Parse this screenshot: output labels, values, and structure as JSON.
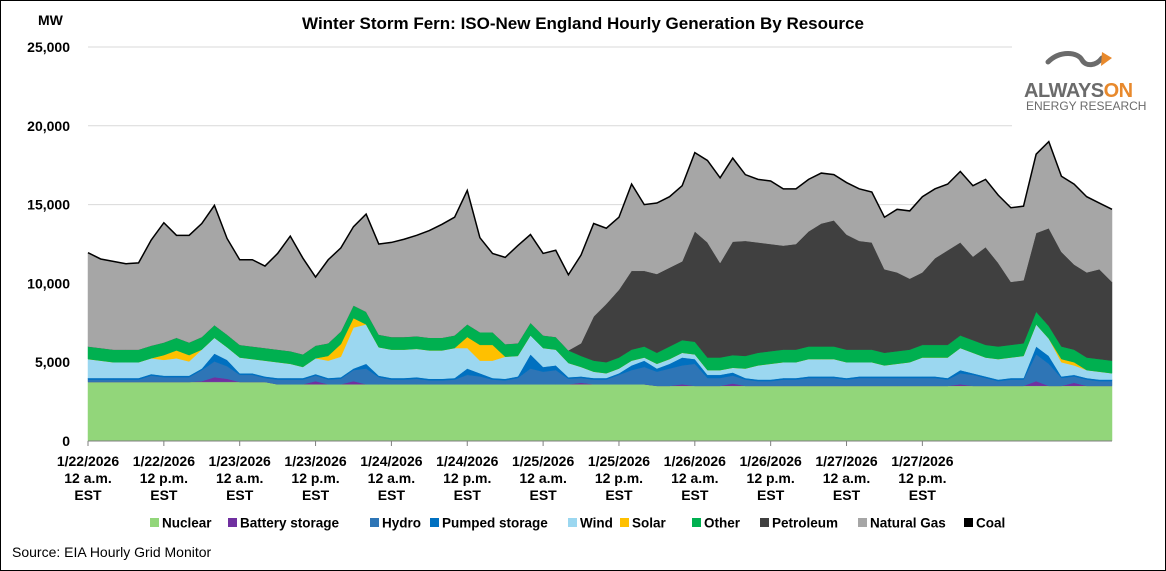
{
  "chart_data": {
    "type": "area",
    "stacked": true,
    "title": "Winter Storm Fern: ISO-New England Hourly Generation By Resource",
    "y_unit_label": "MW",
    "source": "Source: EIA Hourly Grid Monitor",
    "ylim": [
      0,
      25000
    ],
    "y_ticks": [
      "0",
      "5,000",
      "10,000",
      "15,000",
      "20,000",
      "25,000"
    ],
    "y_tick_values": [
      0,
      5000,
      10000,
      15000,
      20000,
      25000
    ],
    "grid": true,
    "legend_position": "bottom",
    "x_tick_labels": [
      [
        "1/22/2026",
        "12 a.m.",
        "EST"
      ],
      [
        "1/22/2026",
        "12 p.m.",
        "EST"
      ],
      [
        "1/23/2026",
        "12 a.m.",
        "EST"
      ],
      [
        "1/23/2026",
        "12 p.m.",
        "EST"
      ],
      [
        "1/24/2026",
        "12 a.m.",
        "EST"
      ],
      [
        "1/24/2026",
        "12 p.m.",
        "EST"
      ],
      [
        "1/25/2026",
        "12 a.m.",
        "EST"
      ],
      [
        "1/25/2026",
        "12 p.m.",
        "EST"
      ],
      [
        "1/26/2026",
        "12 a.m.",
        "EST"
      ],
      [
        "1/26/2026",
        "12 p.m.",
        "EST"
      ],
      [
        "1/27/2026",
        "12 a.m.",
        "EST"
      ],
      [
        "1/27/2026",
        "12 p.m.",
        "EST"
      ]
    ],
    "x_hours_per_step": 2,
    "series": [
      {
        "name": "Nuclear",
        "color": "#92d67a",
        "values": [
          3750,
          3750,
          3750,
          3750,
          3750,
          3750,
          3750,
          3750,
          3750,
          3750,
          3750,
          3750,
          3750,
          3750,
          3750,
          3600,
          3600,
          3600,
          3600,
          3600,
          3600,
          3600,
          3600,
          3600,
          3600,
          3600,
          3600,
          3600,
          3600,
          3600,
          3600,
          3600,
          3600,
          3600,
          3600,
          3600,
          3600,
          3600,
          3600,
          3600,
          3600,
          3600,
          3600,
          3600,
          3600,
          3500,
          3500,
          3500,
          3500,
          3500,
          3500,
          3500,
          3500,
          3500,
          3500,
          3500,
          3500,
          3500,
          3500,
          3500,
          3500,
          3500,
          3500,
          3500,
          3500,
          3500,
          3500,
          3500,
          3500,
          3500,
          3500,
          3500,
          3500,
          3500,
          3500,
          3500,
          3500,
          3500,
          3500,
          3500,
          3500,
          3500
        ]
      },
      {
        "name": "Battery storage",
        "color": "#7030a0",
        "values": [
          0,
          0,
          0,
          0,
          0,
          0,
          0,
          0,
          0,
          50,
          300,
          200,
          0,
          0,
          0,
          0,
          0,
          0,
          200,
          0,
          0,
          200,
          0,
          0,
          0,
          0,
          0,
          0,
          0,
          0,
          0,
          0,
          0,
          0,
          0,
          0,
          0,
          0,
          0,
          100,
          0,
          0,
          0,
          0,
          0,
          0,
          0,
          100,
          0,
          0,
          0,
          150,
          0,
          0,
          0,
          0,
          0,
          0,
          0,
          0,
          0,
          0,
          0,
          0,
          0,
          0,
          0,
          0,
          0,
          100,
          0,
          0,
          0,
          0,
          0,
          300,
          0,
          0,
          200,
          0,
          0,
          0
        ]
      },
      {
        "name": "Hydro",
        "color": "#2e75b6",
        "values": [
          150,
          150,
          150,
          150,
          150,
          400,
          300,
          300,
          300,
          700,
          1000,
          800,
          450,
          450,
          250,
          300,
          300,
          300,
          350,
          300,
          350,
          700,
          1000,
          450,
          300,
          300,
          350,
          250,
          250,
          300,
          600,
          500,
          300,
          250,
          400,
          1000,
          800,
          900,
          350,
          300,
          300,
          300,
          600,
          900,
          1100,
          900,
          1100,
          1200,
          1400,
          500,
          500,
          500,
          400,
          300,
          300,
          400,
          400,
          500,
          500,
          500,
          400,
          500,
          500,
          500,
          500,
          500,
          500,
          500,
          400,
          700,
          700,
          500,
          300,
          400,
          400,
          1700,
          1400,
          500,
          400,
          400,
          300,
          300
        ]
      },
      {
        "name": "Pumped storage",
        "color": "#0070c0",
        "values": [
          100,
          100,
          100,
          100,
          100,
          100,
          100,
          100,
          100,
          100,
          500,
          400,
          100,
          100,
          100,
          100,
          100,
          100,
          100,
          100,
          100,
          100,
          300,
          100,
          100,
          100,
          100,
          100,
          100,
          100,
          400,
          200,
          100,
          100,
          100,
          900,
          300,
          300,
          100,
          100,
          100,
          100,
          100,
          300,
          400,
          200,
          300,
          500,
          300,
          200,
          200,
          200,
          100,
          100,
          100,
          100,
          100,
          100,
          100,
          100,
          100,
          100,
          100,
          100,
          100,
          100,
          100,
          100,
          100,
          200,
          100,
          100,
          100,
          100,
          100,
          500,
          500,
          100,
          100,
          100,
          100,
          100
        ]
      },
      {
        "name": "Wind",
        "color": "#9bd7f0",
        "values": [
          1200,
          1100,
          1000,
          1000,
          1000,
          1000,
          1000,
          1100,
          900,
          1200,
          1000,
          800,
          1000,
          900,
          1000,
          1000,
          900,
          700,
          1000,
          1100,
          1300,
          2600,
          2500,
          1800,
          1800,
          1800,
          1800,
          1800,
          1800,
          1900,
          1300,
          800,
          1100,
          1400,
          1300,
          1200,
          1200,
          1000,
          900,
          600,
          400,
          300,
          300,
          300,
          200,
          300,
          300,
          300,
          300,
          300,
          300,
          300,
          600,
          900,
          1000,
          1000,
          1000,
          1100,
          1100,
          1100,
          1000,
          900,
          900,
          700,
          800,
          900,
          1200,
          1200,
          1300,
          1400,
          1300,
          1200,
          1300,
          1300,
          1400,
          1400,
          1100,
          900,
          600,
          500,
          500,
          400
        ]
      },
      {
        "name": "Solar",
        "color": "#ffc000",
        "values": [
          0,
          0,
          0,
          0,
          0,
          0,
          300,
          500,
          400,
          0,
          0,
          0,
          0,
          0,
          0,
          0,
          0,
          0,
          0,
          300,
          800,
          600,
          0,
          0,
          0,
          0,
          0,
          0,
          0,
          0,
          700,
          1000,
          1000,
          0,
          0,
          0,
          0,
          0,
          0,
          0,
          0,
          0,
          0,
          0,
          0,
          0,
          0,
          0,
          0,
          0,
          0,
          0,
          0,
          0,
          0,
          0,
          0,
          0,
          0,
          0,
          0,
          0,
          0,
          0,
          0,
          0,
          0,
          0,
          0,
          0,
          0,
          0,
          0,
          0,
          0,
          0,
          0,
          200,
          200,
          0,
          0,
          0
        ]
      },
      {
        "name": "Other",
        "color": "#00b050",
        "values": [
          800,
          800,
          800,
          800,
          800,
          800,
          800,
          800,
          800,
          800,
          800,
          800,
          800,
          800,
          800,
          800,
          800,
          800,
          800,
          800,
          800,
          800,
          800,
          800,
          800,
          800,
          800,
          800,
          800,
          800,
          800,
          800,
          800,
          800,
          800,
          800,
          800,
          800,
          800,
          700,
          700,
          700,
          700,
          700,
          700,
          700,
          800,
          800,
          800,
          800,
          800,
          800,
          800,
          800,
          800,
          800,
          800,
          800,
          800,
          800,
          800,
          800,
          800,
          800,
          800,
          800,
          800,
          800,
          800,
          800,
          800,
          800,
          800,
          800,
          800,
          800,
          800,
          800,
          800,
          800,
          800,
          800
        ]
      },
      {
        "name": "Petroleum",
        "color": "#404040",
        "values": [
          0,
          0,
          0,
          0,
          0,
          0,
          0,
          0,
          0,
          0,
          0,
          0,
          0,
          0,
          0,
          0,
          0,
          0,
          0,
          0,
          0,
          0,
          0,
          0,
          0,
          0,
          0,
          0,
          0,
          0,
          0,
          0,
          0,
          0,
          0,
          0,
          0,
          0,
          0,
          800,
          2800,
          3700,
          4300,
          5000,
          4800,
          5000,
          5000,
          5000,
          7000,
          7300,
          6000,
          7200,
          7300,
          7000,
          6800,
          6600,
          6700,
          7300,
          7800,
          8000,
          7300,
          6900,
          6800,
          5300,
          5000,
          4500,
          4600,
          5500,
          6000,
          5900,
          5300,
          6200,
          5300,
          4000,
          4000,
          5000,
          6200,
          6000,
          5400,
          5400,
          5700,
          5000
        ]
      },
      {
        "name": "Natural Gas",
        "color": "#a6a6a6",
        "values": [
          5950,
          5650,
          5600,
          5450,
          5500,
          6700,
          7600,
          6500,
          6800,
          7200,
          7600,
          6100,
          5400,
          5500,
          5200,
          6100,
          7300,
          6100,
          4350,
          5300,
          5300,
          5000,
          6200,
          5750,
          6000,
          6200,
          6400,
          6800,
          7200,
          7500,
          8500,
          6000,
          5000,
          5500,
          6200,
          5600,
          5200,
          5500,
          4800,
          5600,
          5900,
          4800,
          4600,
          5500,
          4200,
          4500,
          4500,
          4800,
          5000,
          5200,
          5400,
          5300,
          4200,
          4000,
          4000,
          3600,
          3500,
          3300,
          3200,
          2900,
          3300,
          3300,
          3200,
          3300,
          4000,
          4300,
          4800,
          4400,
          4200,
          4500,
          4500,
          4300,
          4300,
          4700,
          4700,
          5000,
          5500,
          4800,
          5100,
          4800,
          4200,
          4600
        ]
      },
      {
        "name": "Coal",
        "color": "#000000",
        "values": [
          0,
          0,
          0,
          0,
          0,
          0,
          0,
          0,
          0,
          0,
          0,
          0,
          0,
          0,
          0,
          0,
          0,
          0,
          0,
          0,
          0,
          0,
          0,
          0,
          0,
          0,
          0,
          0,
          0,
          0,
          0,
          0,
          0,
          0,
          0,
          0,
          0,
          0,
          0,
          0,
          0,
          0,
          0,
          0,
          0,
          0,
          0,
          0,
          0,
          0,
          0,
          0,
          0,
          0,
          0,
          0,
          0,
          0,
          0,
          0,
          0,
          0,
          0,
          0,
          0,
          0,
          0,
          0,
          0,
          0,
          0,
          0,
          0,
          0,
          0,
          0,
          0,
          0,
          0,
          0,
          0,
          0
        ]
      }
    ]
  },
  "logo": {
    "word_a": "ALWAYS",
    "word_b": "ON",
    "subtitle": "ENERGY RESEARCH",
    "accent_color": "#e8892c"
  }
}
